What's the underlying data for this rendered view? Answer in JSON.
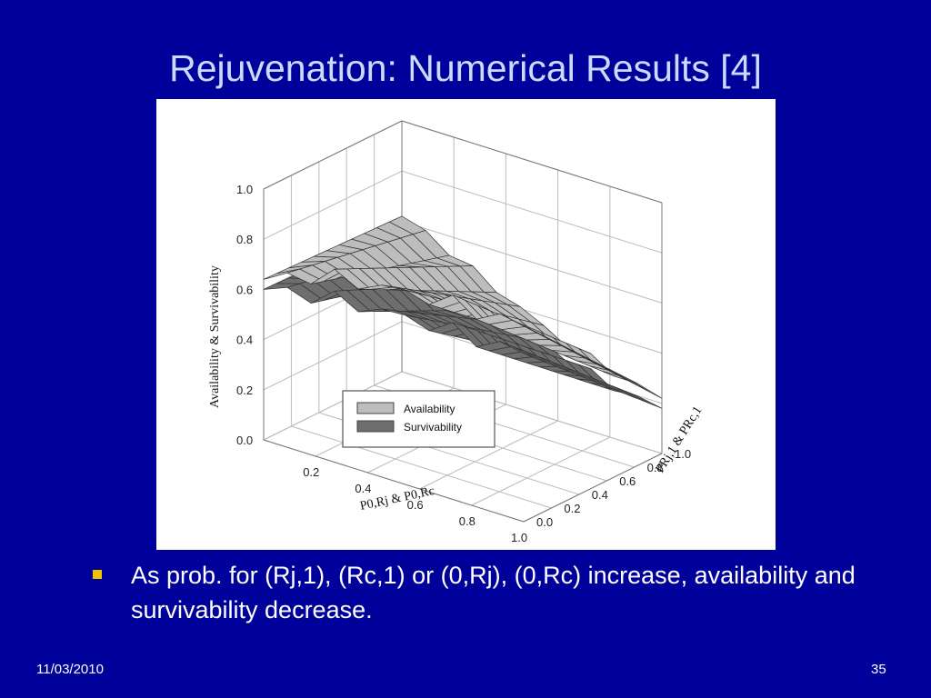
{
  "slide": {
    "title": "Rejuvenation: Numerical Results [4]",
    "bullet": "As prob. for (Rj,1), (Rc,1) or (0,Rj), (0,Rc) increase, availability and survivability decrease.",
    "date": "11/03/2010",
    "page_number": "35"
  },
  "colors": {
    "background": "#00009a",
    "title": "#c8dcff",
    "bullet_marker": "#f2c200",
    "availability_fill": "#bdbdbd",
    "survivability_fill": "#6e6e6e"
  },
  "chart_data": {
    "type": "surface",
    "zlabel": "Availability & Survivability",
    "xlabel": "P0,Rj & P0,Rc",
    "ylabel": "PRj,1 & PRc,1",
    "z_ticks": [
      "0.0",
      "0.2",
      "0.4",
      "0.6",
      "0.8",
      "1.0"
    ],
    "x_ticks": [
      "0.2",
      "0.4",
      "0.6",
      "0.8",
      "1.0"
    ],
    "y_ticks": [
      "0.0",
      "0.2",
      "0.4",
      "0.6",
      "0.8",
      "1.0"
    ],
    "zlim": [
      0,
      1
    ],
    "xlim": [
      0,
      1
    ],
    "ylim": [
      0,
      1
    ],
    "legend": {
      "placement": "bottom-center",
      "entries": [
        "Availability",
        "Survivability"
      ]
    },
    "series": [
      {
        "name": "Availability",
        "x": [
          0.0,
          0.1,
          0.2,
          0.3,
          0.4,
          0.5,
          0.6,
          0.7,
          0.8,
          0.9,
          1.0
        ],
        "y": [
          0.0,
          0.1,
          0.2,
          0.3,
          0.4,
          0.5,
          0.6,
          0.7,
          0.8,
          0.9,
          1.0
        ],
        "z_back_edge": [
          0.64,
          0.68,
          0.72,
          0.74,
          0.75,
          0.76,
          0.77,
          0.78,
          0.78,
          0.78,
          0.78
        ],
        "z_front_edge": [
          0.62,
          0.58,
          0.53,
          0.48,
          0.43,
          0.38,
          0.33,
          0.3,
          0.27,
          0.24,
          0.22
        ]
      },
      {
        "name": "Survivability",
        "x": [
          0.0,
          0.1,
          0.2,
          0.3,
          0.4,
          0.5,
          0.6,
          0.7,
          0.8,
          0.9,
          1.0
        ],
        "y": [
          0.0,
          0.1,
          0.2,
          0.3,
          0.4,
          0.5,
          0.6,
          0.7,
          0.8,
          0.9,
          1.0
        ],
        "z_back_edge": [
          0.6,
          0.62,
          0.64,
          0.65,
          0.66,
          0.66,
          0.67,
          0.67,
          0.67,
          0.67,
          0.67
        ],
        "z_front_edge": [
          0.58,
          0.52,
          0.46,
          0.41,
          0.36,
          0.31,
          0.27,
          0.24,
          0.21,
          0.19,
          0.18
        ]
      }
    ]
  }
}
